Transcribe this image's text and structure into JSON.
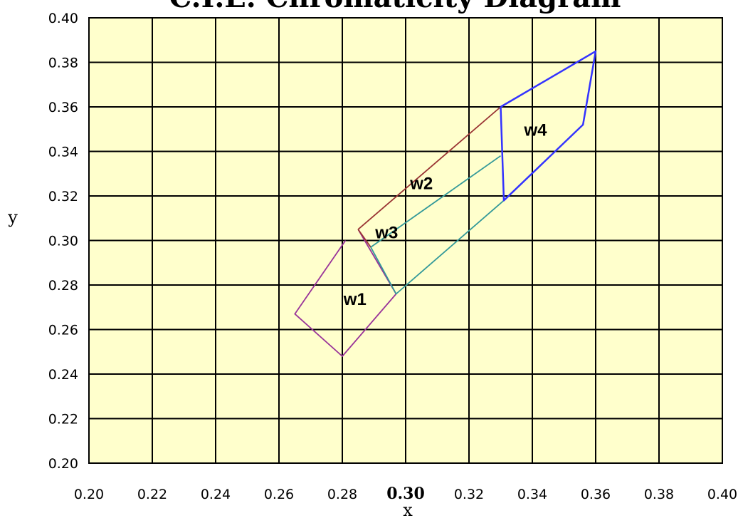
{
  "chart_data": {
    "type": "line",
    "title": "C.I.E. Chromaticity Diagram",
    "xlabel": "x",
    "ylabel": "y",
    "xlim": [
      0.2,
      0.4
    ],
    "ylim": [
      0.2,
      0.4
    ],
    "x_ticks": [
      "0.20",
      "0.22",
      "0.24",
      "0.26",
      "0.28",
      "0.30",
      "0.32",
      "0.34",
      "0.36",
      "0.38",
      "0.40"
    ],
    "y_ticks": [
      "0.20",
      "0.22",
      "0.24",
      "0.26",
      "0.28",
      "0.30",
      "0.32",
      "0.34",
      "0.36",
      "0.38",
      "0.40"
    ],
    "emphasized_x_tick": "0.30",
    "grid": true,
    "plot_background": "#ffffcc",
    "series": [
      {
        "name": "w1",
        "color": "#993399",
        "points": [
          [
            0.281,
            0.3
          ],
          [
            0.265,
            0.267
          ],
          [
            0.28,
            0.248
          ],
          [
            0.297,
            0.276
          ],
          [
            0.285,
            0.305
          ]
        ]
      },
      {
        "name": "w2",
        "color": "#993333",
        "points": [
          [
            0.285,
            0.305
          ],
          [
            0.33,
            0.36
          ]
        ]
      },
      {
        "name": "w2",
        "color": "#993333",
        "points": [
          [
            0.285,
            0.305
          ],
          [
            0.289,
            0.297
          ]
        ]
      },
      {
        "name": "w3",
        "color": "#339999",
        "points": [
          [
            0.289,
            0.297
          ],
          [
            0.33,
            0.338
          ]
        ]
      },
      {
        "name": "w3",
        "color": "#339999",
        "points": [
          [
            0.289,
            0.297
          ],
          [
            0.297,
            0.276
          ],
          [
            0.331,
            0.318
          ]
        ]
      },
      {
        "name": "w4",
        "color": "#3333ff",
        "points": [
          [
            0.33,
            0.36
          ],
          [
            0.36,
            0.385
          ],
          [
            0.356,
            0.352
          ],
          [
            0.331,
            0.318
          ],
          [
            0.33,
            0.36
          ]
        ]
      }
    ],
    "region_labels": [
      {
        "text": "w1",
        "x": 0.284,
        "y": 0.273
      },
      {
        "text": "w2",
        "x": 0.305,
        "y": 0.325
      },
      {
        "text": "w3",
        "x": 0.294,
        "y": 0.303
      },
      {
        "text": "w4",
        "x": 0.341,
        "y": 0.349
      }
    ]
  }
}
